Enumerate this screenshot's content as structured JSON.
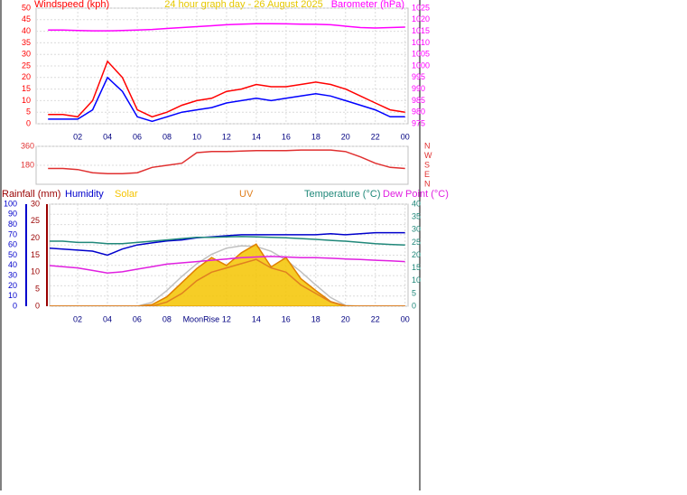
{
  "chart_data": [
    {
      "type": "line",
      "title": "24 hour graph day - 26 August 2025",
      "x": [
        0,
        1,
        2,
        3,
        4,
        5,
        6,
        7,
        8,
        9,
        10,
        11,
        12,
        13,
        14,
        15,
        16,
        17,
        18,
        19,
        20,
        21,
        22,
        23,
        24
      ],
      "xlim": [
        -0.8,
        24.2
      ],
      "xticks": [
        {
          "value": 2,
          "label": "02"
        },
        {
          "value": 4,
          "label": "04"
        },
        {
          "value": 6,
          "label": "06"
        },
        {
          "value": 8,
          "label": "08"
        },
        10,
        12,
        14,
        16,
        18,
        20,
        22,
        {
          "value": 24,
          "label": "00"
        }
      ],
      "ylim": [
        0,
        50
      ],
      "yticks": [
        0,
        5,
        10,
        15,
        20,
        25,
        30,
        35,
        40,
        45,
        50
      ],
      "y2lim": [
        975,
        1025
      ],
      "y2ticks": [
        975,
        980,
        985,
        990,
        995,
        1000,
        1005,
        1010,
        1015,
        1020,
        1025
      ],
      "grid": true,
      "series": [
        {
          "name": "Windspeed (kph)",
          "color": "#ff0000",
          "values": [
            4,
            4,
            3,
            10,
            27,
            20,
            6,
            3,
            5,
            8,
            10,
            11,
            14,
            15,
            17,
            16,
            16,
            17,
            18,
            17,
            15,
            12,
            9,
            6,
            5
          ]
        },
        {
          "color": "#0000ff",
          "values": [
            2,
            2,
            2,
            6,
            20,
            14,
            3,
            1,
            3,
            5,
            6,
            7,
            9,
            10,
            11,
            10,
            11,
            12,
            13,
            12,
            10,
            8,
            6,
            3,
            3
          ]
        },
        {
          "name": "Barometer (hPa)",
          "color": "#ff00ff",
          "axis": "y2",
          "values": [
            1015.5,
            1015.5,
            1015.3,
            1015.2,
            1015.2,
            1015.3,
            1015.5,
            1015.8,
            1016.2,
            1016.6,
            1017.0,
            1017.4,
            1017.8,
            1018.1,
            1018.3,
            1018.3,
            1018.2,
            1018.1,
            1018.0,
            1017.8,
            1017.2,
            1016.6,
            1016.4,
            1016.6,
            1016.8
          ]
        }
      ]
    },
    {
      "type": "line",
      "x": [
        0,
        1,
        2,
        3,
        4,
        5,
        6,
        7,
        8,
        9,
        10,
        11,
        12,
        13,
        14,
        15,
        16,
        17,
        18,
        19,
        20,
        21,
        22,
        23,
        24
      ],
      "xlim": [
        -0.8,
        24.2
      ],
      "ylim": [
        0,
        360
      ],
      "yticks": [
        180,
        360
      ],
      "y2lim": [
        0,
        360
      ],
      "y2ticks": [
        {
          "value": 360,
          "label": "N"
        },
        {
          "value": 270,
          "label": "W"
        },
        {
          "value": 180,
          "label": "S"
        },
        {
          "value": 90,
          "label": "E"
        },
        {
          "value": 0,
          "label": "N"
        }
      ],
      "grid": true,
      "series": [
        {
          "color": "#e03030",
          "values": [
            150,
            150,
            140,
            110,
            100,
            100,
            110,
            160,
            180,
            200,
            300,
            310,
            310,
            315,
            320,
            320,
            320,
            325,
            325,
            325,
            310,
            260,
            200,
            160,
            150
          ]
        }
      ]
    },
    {
      "type": "line",
      "x": [
        0,
        1,
        2,
        3,
        4,
        5,
        6,
        7,
        8,
        9,
        10,
        11,
        12,
        13,
        14,
        15,
        16,
        17,
        18,
        19,
        20,
        21,
        22,
        23,
        24
      ],
      "xlim": [
        0.12,
        24.2
      ],
      "xticks": [
        {
          "value": 2,
          "label": "02"
        },
        {
          "value": 4,
          "label": "04"
        },
        {
          "value": 6,
          "label": "06"
        },
        {
          "value": 8,
          "label": "08"
        },
        12,
        14,
        16,
        18,
        20,
        22,
        {
          "value": 24,
          "label": "00"
        }
      ],
      "ylim": [
        0,
        100
      ],
      "yticks": [
        0,
        10,
        20,
        30,
        40,
        50,
        60,
        70,
        80,
        90,
        100
      ],
      "y2lim": [
        0,
        40
      ],
      "y2ticks": [
        0,
        5,
        10,
        15,
        20,
        25,
        30,
        35,
        40
      ],
      "y3lim": [
        0,
        30
      ],
      "y3ticks": [
        0,
        5,
        10,
        15,
        20,
        25,
        30
      ],
      "y4lim": [
        0,
        1300
      ],
      "y5lim": [
        0,
        12
      ],
      "grid": true,
      "annotations": [
        {
          "text": "MoonRise",
          "x": 10.3
        }
      ],
      "series": [
        {
          "name": "Rainfall (mm)",
          "color": "#990000",
          "axis": "y3",
          "values": [
            0,
            0,
            0,
            0,
            0,
            0,
            0,
            0,
            0,
            0,
            0,
            0,
            0,
            0,
            0,
            0,
            0,
            0,
            0,
            0,
            0,
            0,
            0,
            0,
            0
          ]
        },
        {
          "name": "Humidity",
          "color": "#0000cc",
          "values": [
            57,
            56,
            55,
            54,
            50,
            56,
            60,
            62,
            64,
            65,
            67,
            68,
            69,
            70,
            70,
            70,
            70,
            70,
            70,
            71,
            70,
            71,
            72,
            72,
            72
          ]
        },
        {
          "color": "#c0c0c0",
          "axis": "y4",
          "values": [
            0,
            0,
            0,
            0,
            0,
            0,
            0,
            50,
            200,
            380,
            540,
            660,
            740,
            770,
            760,
            700,
            590,
            440,
            270,
            110,
            10,
            0,
            0,
            0,
            0
          ]
        },
        {
          "name": "Solar",
          "color": "#f5c400",
          "axis": "y4",
          "fill": true,
          "values": [
            0,
            0,
            0,
            0,
            0,
            0,
            0,
            20,
            120,
            300,
            480,
            620,
            520,
            680,
            790,
            500,
            620,
            350,
            200,
            60,
            5,
            0,
            0,
            0,
            0
          ]
        },
        {
          "name": "UV",
          "color": "#e08020",
          "axis": "y5",
          "values": [
            0,
            0,
            0,
            0,
            0,
            0,
            0,
            0,
            0.5,
            1.5,
            3,
            4,
            4.5,
            5,
            5.5,
            4.5,
            4,
            2.5,
            1.5,
            0.5,
            0,
            0,
            0,
            0,
            0
          ]
        },
        {
          "name": "Temperature (°C)",
          "color": "#20887a",
          "axis": "y2",
          "values": [
            25.5,
            25.5,
            25,
            25,
            24.5,
            24.5,
            25,
            25.5,
            26,
            26.5,
            27,
            27,
            27.2,
            27.3,
            27.2,
            27,
            26.8,
            26.5,
            26.2,
            25.8,
            25.5,
            25,
            24.5,
            24.2,
            24
          ]
        },
        {
          "name": "Dew Point (°C)",
          "color": "#e020e0",
          "axis": "y2",
          "values": [
            16,
            15.5,
            15,
            14,
            13,
            13.5,
            14.5,
            15.5,
            16.5,
            17,
            17.5,
            18,
            18.5,
            19,
            19.3,
            19.5,
            19.3,
            19,
            19,
            18.8,
            18.5,
            18.3,
            18,
            17.8,
            17.5
          ]
        }
      ]
    }
  ]
}
